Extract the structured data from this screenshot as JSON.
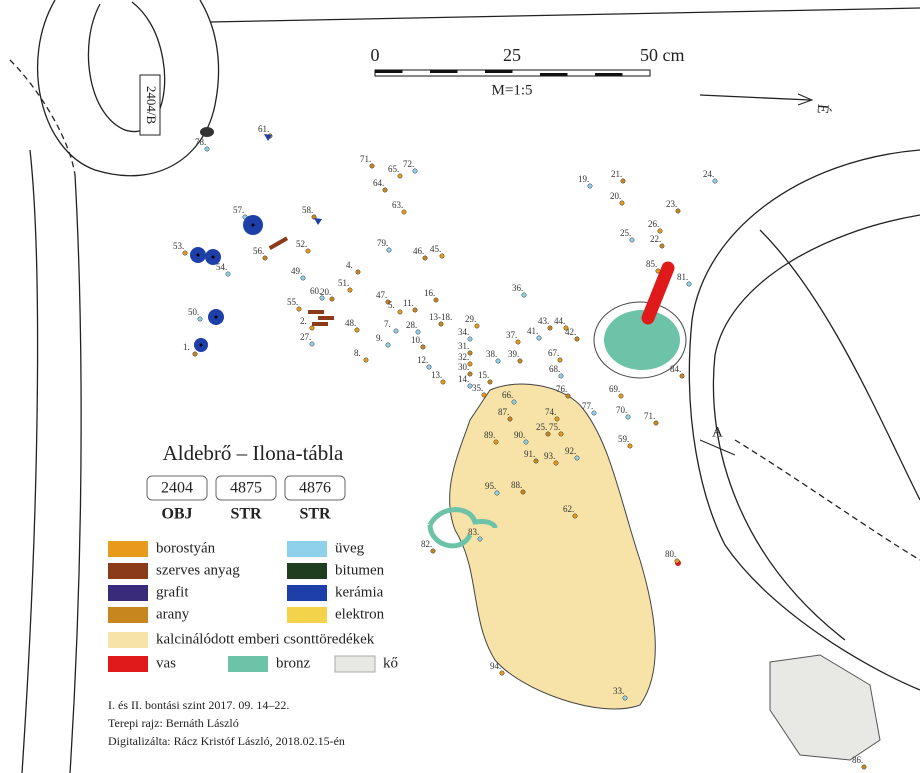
{
  "title": "Aldebrő – Ilona-tábla",
  "header_boxes": [
    {
      "code": "2404",
      "kind": "OBJ"
    },
    {
      "code": "4875",
      "kind": "STR"
    },
    {
      "code": "4876",
      "kind": "STR"
    }
  ],
  "scale": {
    "ticks": [
      "0",
      "25",
      "50 cm"
    ],
    "ratio": "M=1:5"
  },
  "north": "É",
  "feature_label": "2404/B",
  "section_label": "A",
  "legend": [
    {
      "label": "borostyán",
      "color": "#e89a1a"
    },
    {
      "label": "üveg",
      "color": "#8fd0ea"
    },
    {
      "label": "szerves anyag",
      "color": "#8b3a1a"
    },
    {
      "label": "bitumen",
      "color": "#1f3d1f"
    },
    {
      "label": "grafit",
      "color": "#3a2a7a"
    },
    {
      "label": "kerámia",
      "color": "#1f3fa8"
    },
    {
      "label": "arany",
      "color": "#c8861e"
    },
    {
      "label": "elektron",
      "color": "#f2d34a"
    },
    {
      "label": "kalcinálódott emberi csonttöredékek",
      "color": "#f7e3a8"
    },
    {
      "label": "vas",
      "color": "#e01a1a"
    },
    {
      "label": "bronz",
      "color": "#6cc3a8"
    },
    {
      "label": "kő",
      "color": "#e8e8e4"
    }
  ],
  "notes": [
    "I. és II. bontási szint  2017. 09. 14–22.",
    "Terepi rajz: Bernáth László",
    "Digitalizálta: Rácz Kristóf László, 2018.02.15-én"
  ],
  "finds": [
    "61.",
    "78.",
    "71.",
    "65.",
    "72.",
    "64.",
    "63.",
    "57.",
    "58.",
    "53.",
    "54.",
    "56.",
    "52.",
    "49.",
    "4.",
    "51.",
    "79.",
    "46.",
    "45.",
    "36.",
    "16.",
    "55.",
    "60.",
    "20.",
    "2.",
    "27.",
    "47.",
    "48.",
    "7.",
    "11.",
    "5.",
    "28.",
    "13-18.",
    "29.",
    "9.",
    "10.",
    "8.",
    "34.",
    "31.",
    "32.",
    "38.",
    "39.",
    "37.",
    "12.",
    "30.",
    "13.",
    "14.",
    "15.",
    "35.",
    "66.",
    "43.",
    "44.",
    "41.",
    "42.",
    "67.",
    "68.",
    "76.",
    "74.",
    "77.",
    "87.",
    "89.",
    "90.",
    "25.",
    "75.",
    "92.",
    "91.",
    "93.",
    "95.",
    "88.",
    "62.",
    "83.",
    "82.",
    "94.",
    "33.",
    "86.",
    "80.",
    "19.",
    "21.",
    "20.",
    "24.",
    "23.",
    "26.",
    "25.",
    "22.",
    "85.",
    "81.",
    "84.",
    "69.",
    "70.",
    "71.",
    "59.",
    "50.",
    "1."
  ]
}
